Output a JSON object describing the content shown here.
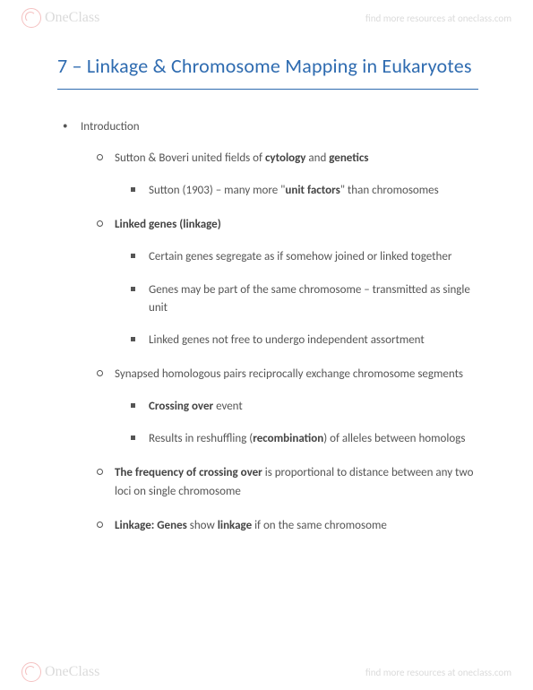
{
  "brand": {
    "logo_text": "OneClass",
    "resources_text": "find more resources at oneclass.com"
  },
  "title": "7 – Linkage & Chromosome Mapping in Eukaryotes",
  "notes": {
    "lvl1": "Introduction",
    "items": [
      {
        "head_pre": "Sutton & Boveri united fields of ",
        "head_b1": "cytology",
        "head_mid": " and ",
        "head_b2": "genetics",
        "head_post": "",
        "sub": [
          {
            "pre": "Sutton (1903) – many more \"",
            "b1": "unit factors",
            "post": "\" than chromosomes"
          }
        ]
      },
      {
        "head_b1": "Linked genes (linkage)",
        "sub": [
          {
            "pre": "Certain genes segregate as if somehow joined or linked together"
          },
          {
            "pre": "Genes may be part of the same chromosome – transmitted as single unit"
          },
          {
            "pre": "Linked genes not free to undergo independent assortment"
          }
        ]
      },
      {
        "head_pre": "Synapsed homologous pairs reciprocally exchange chromosome segments",
        "sub": [
          {
            "b1": "Crossing over",
            "post": " event"
          },
          {
            "pre": "Results in reshuffling (",
            "b1": "recombination",
            "post": ") of alleles between homologs"
          }
        ]
      },
      {
        "head_b1": "The frequency of crossing over",
        "head_post": " is proportional to distance between any two loci on single chromosome"
      },
      {
        "head_b1": "Linkage: Genes",
        "head_mid": " show ",
        "head_b2": "linkage",
        "head_post": " if on the same chromosome"
      }
    ]
  }
}
